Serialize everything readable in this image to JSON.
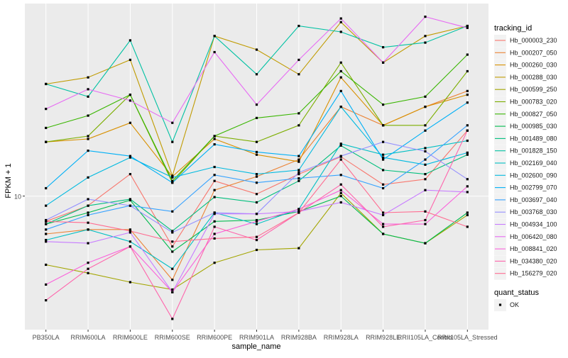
{
  "chart_data": {
    "type": "line",
    "x_label": "sample_name",
    "y_label": "FPKM + 1",
    "legend_title": "tracking_id",
    "legend2_title": "quant_status",
    "legend2_items": [
      "OK"
    ],
    "log_scale_y": true,
    "grid": true,
    "categories": [
      "PB350LA",
      "RRIM600LA",
      "RRIM600LE",
      "RRIM600SE",
      "RRIM600PE",
      "RRIM901LA",
      "RRIM928BA",
      "RRIM928LA",
      "RRIM928LE",
      "RRII105LA_Control",
      "RRII105LA_Stressed"
    ],
    "ylim": [
      2.7,
      66
    ],
    "yticks": [
      10
    ],
    "series": [
      {
        "name": "Hb_000003_230",
        "color": "#F8766D",
        "values": [
          7.8,
          9.1,
          12.4,
          6.1,
          11.6,
          10.2,
          12.4,
          14.7,
          11.2,
          11.8,
          19
        ]
      },
      {
        "name": "Hb_000207_050",
        "color": "#EB8335",
        "values": [
          6.9,
          7.2,
          7.2,
          4.4,
          10.6,
          12.1,
          14.3,
          24,
          20,
          24,
          28
        ]
      },
      {
        "name": "Hb_000260_030",
        "color": "#D89000",
        "values": [
          17,
          17.5,
          20.5,
          12.1,
          17.5,
          15,
          14,
          32,
          20,
          24,
          27
        ]
      },
      {
        "name": "Hb_000288_030",
        "color": "#C09B00",
        "values": [
          30,
          32,
          38,
          12.2,
          48,
          42,
          33,
          55,
          37,
          48,
          53
        ]
      },
      {
        "name": "Hb_000599_250",
        "color": "#A3A500",
        "values": [
          5.1,
          4.7,
          4.3,
          4.0,
          5.2,
          5.9,
          6.0,
          10.3,
          6.9,
          6.3,
          8.3
        ]
      },
      {
        "name": "Hb_000783_020",
        "color": "#7CAE00",
        "values": [
          17,
          18,
          27,
          11.4,
          18,
          17,
          20,
          37,
          20,
          20,
          34
        ]
      },
      {
        "name": "Hb_000827_050",
        "color": "#39B600",
        "values": [
          19.5,
          22,
          27,
          11.6,
          18,
          21.5,
          22.5,
          34,
          24.5,
          26.5,
          40
        ]
      },
      {
        "name": "Hb_000985_030",
        "color": "#00BB4E",
        "values": [
          7.6,
          8.5,
          9.6,
          5.8,
          7.8,
          7.9,
          8.6,
          10,
          6.9,
          6.3,
          8.5
        ]
      },
      {
        "name": "Hb_001489_080",
        "color": "#00BF7D",
        "values": [
          7.6,
          9.1,
          9.7,
          7.1,
          9.9,
          9.4,
          11.6,
          16.4,
          12.9,
          12.4,
          15
        ]
      },
      {
        "name": "Hb_001828_150",
        "color": "#00C1A3",
        "values": [
          30,
          26.5,
          46,
          17,
          48,
          33,
          53,
          50,
          43,
          45,
          53
        ]
      },
      {
        "name": "Hb_002169_040",
        "color": "#00BFC4",
        "values": [
          6.5,
          7.2,
          6.4,
          4.9,
          8.5,
          7.6,
          8.8,
          16.7,
          15,
          16,
          17.2
        ]
      },
      {
        "name": "Hb_002600_090",
        "color": "#00BAE0",
        "values": [
          9.1,
          12,
          14.6,
          12,
          13.3,
          12.4,
          12.9,
          24,
          14.6,
          13.6,
          15.3
        ]
      },
      {
        "name": "Hb_002799_070",
        "color": "#00B0F6",
        "values": [
          10.8,
          15.6,
          14.8,
          11.4,
          16.6,
          15.4,
          14.8,
          28,
          14.3,
          19,
          25
        ]
      },
      {
        "name": "Hb_003697_040",
        "color": "#35A2FF",
        "values": [
          7.2,
          8.3,
          9.1,
          8.6,
          12.3,
          11.4,
          11.9,
          12.3,
          10.8,
          14.3,
          20
        ]
      },
      {
        "name": "Hb_003768_030",
        "color": "#9590FF",
        "values": [
          7.9,
          9.7,
          9.1,
          7,
          8.5,
          8.4,
          12.6,
          14.8,
          17,
          15.5,
          11.8
        ]
      },
      {
        "name": "Hb_004934_100",
        "color": "#C77CFF",
        "values": [
          6.4,
          6.3,
          7.0,
          3.9,
          8.4,
          8.4,
          8.6,
          9.4,
          8.3,
          10.6,
          10.4
        ]
      },
      {
        "name": "Hb_006420_080",
        "color": "#E76BF3",
        "values": [
          23.5,
          28.5,
          25.5,
          20.5,
          41,
          24.5,
          38,
          57,
          37,
          58,
          52
        ]
      },
      {
        "name": "Hb_008841_020",
        "color": "#FA62DB",
        "values": [
          4.2,
          5.2,
          6.1,
          3.9,
          6.9,
          7.8,
          8.8,
          10.6,
          7.6,
          7.6,
          11
        ]
      },
      {
        "name": "Hb_034380_020",
        "color": "#FF65AC",
        "values": [
          3.6,
          4.9,
          6.1,
          3.0,
          7.4,
          6.5,
          8.5,
          11.2,
          7.4,
          7.9,
          19
        ]
      },
      {
        "name": "Hb_156279_020",
        "color": "#FF6C91",
        "values": [
          7.8,
          7.7,
          7.1,
          6.4,
          6.6,
          6.7,
          8.5,
          14.3,
          8.5,
          8.6,
          7.4
        ]
      }
    ]
  }
}
